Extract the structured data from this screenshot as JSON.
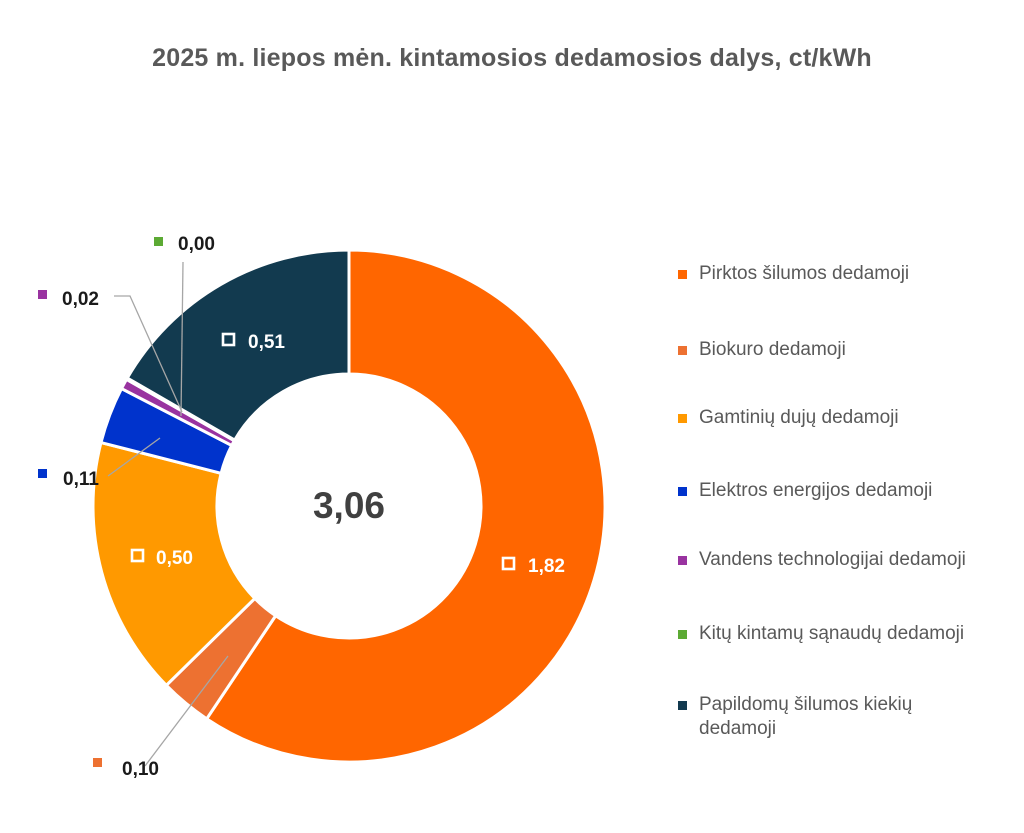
{
  "chart_data": {
    "type": "pie",
    "title": "2025 m.  liepos mėn.  kintamosios dedamosios dalys, ct/kWh",
    "total_label": "3,06",
    "categories": [
      "Pirktos šilumos dedamoji",
      "Biokuro dedamoji",
      "Gamtinių dujų dedamoji",
      "Elektros energijos dedamoji",
      "Vandens technologijai dedamoji",
      "Kitų kintamų sąnaudų dedamoji",
      "Papildomų šilumos kiekių dedamoji"
    ],
    "values": [
      1.82,
      0.1,
      0.5,
      0.11,
      0.02,
      0.0,
      0.51
    ],
    "value_labels": [
      "1,82",
      "0,10",
      "0,50",
      "0,11",
      "0,02",
      "0,00",
      "0,51"
    ],
    "colors": [
      "#FF6600",
      "#ED7131",
      "#FF9900",
      "#0033CC",
      "#9933A0",
      "#5CAA34",
      "#123A4F"
    ],
    "legend_position": "right"
  }
}
